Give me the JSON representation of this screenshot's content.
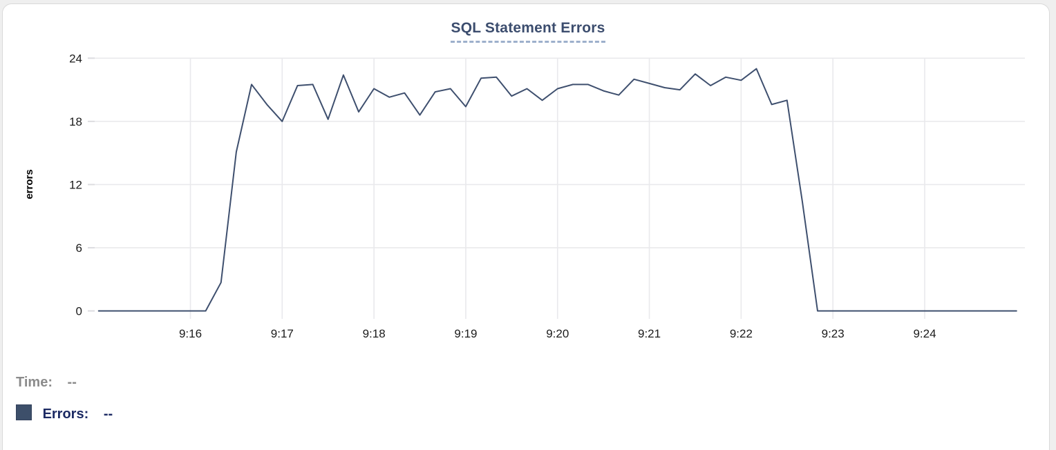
{
  "header": {
    "title": "SQL Statement Errors"
  },
  "chart_data": {
    "type": "line",
    "title": "SQL Statement Errors",
    "xlabel": "",
    "ylabel": "errors",
    "ylim": [
      0,
      24
    ],
    "y_ticks": [
      0,
      6,
      12,
      18,
      24
    ],
    "x_ticks": [
      "9:16",
      "9:17",
      "9:18",
      "9:19",
      "9:20",
      "9:21",
      "9:22",
      "9:23",
      "9:24"
    ],
    "x_range": [
      "9:15:00",
      "9:25:00"
    ],
    "grid": true,
    "legend_position": "bottom-left",
    "series": [
      {
        "name": "Errors",
        "color": "#3e4f6e",
        "points": [
          [
            "9:15:00",
            0
          ],
          [
            "9:15:10",
            0
          ],
          [
            "9:15:20",
            0
          ],
          [
            "9:15:30",
            0
          ],
          [
            "9:15:40",
            0
          ],
          [
            "9:15:50",
            0
          ],
          [
            "9:16:00",
            0
          ],
          [
            "9:16:10",
            0
          ],
          [
            "9:16:20",
            2.7
          ],
          [
            "9:16:30",
            15.1
          ],
          [
            "9:16:40",
            21.5
          ],
          [
            "9:16:50",
            19.6
          ],
          [
            "9:17:00",
            18
          ],
          [
            "9:17:10",
            21.4
          ],
          [
            "9:17:20",
            21.5
          ],
          [
            "9:17:30",
            18.2
          ],
          [
            "9:17:40",
            22.4
          ],
          [
            "9:17:50",
            18.9
          ],
          [
            "9:18:00",
            21.1
          ],
          [
            "9:18:10",
            20.3
          ],
          [
            "9:18:20",
            20.7
          ],
          [
            "9:18:30",
            18.6
          ],
          [
            "9:18:40",
            20.8
          ],
          [
            "9:18:50",
            21.1
          ],
          [
            "9:19:00",
            19.4
          ],
          [
            "9:19:10",
            22.1
          ],
          [
            "9:19:20",
            22.2
          ],
          [
            "9:19:30",
            20.4
          ],
          [
            "9:19:40",
            21.1
          ],
          [
            "9:19:50",
            20
          ],
          [
            "9:20:00",
            21.1
          ],
          [
            "9:20:10",
            21.5
          ],
          [
            "9:20:20",
            21.5
          ],
          [
            "9:20:30",
            20.9
          ],
          [
            "9:20:40",
            20.5
          ],
          [
            "9:20:50",
            22
          ],
          [
            "9:21:00",
            21.6
          ],
          [
            "9:21:10",
            21.2
          ],
          [
            "9:21:20",
            21
          ],
          [
            "9:21:30",
            22.5
          ],
          [
            "9:21:40",
            21.4
          ],
          [
            "9:21:50",
            22.2
          ],
          [
            "9:22:00",
            21.9
          ],
          [
            "9:22:10",
            23
          ],
          [
            "9:22:20",
            19.6
          ],
          [
            "9:22:30",
            20
          ],
          [
            "9:22:40",
            10.4
          ],
          [
            "9:22:50",
            0
          ],
          [
            "9:23:00",
            0
          ],
          [
            "9:23:10",
            0
          ],
          [
            "9:23:20",
            0
          ],
          [
            "9:23:30",
            0
          ],
          [
            "9:23:40",
            0
          ],
          [
            "9:23:50",
            0
          ],
          [
            "9:24:00",
            0
          ],
          [
            "9:24:10",
            0
          ],
          [
            "9:24:20",
            0
          ],
          [
            "9:24:30",
            0
          ],
          [
            "9:24:40",
            0
          ],
          [
            "9:24:50",
            0
          ],
          [
            "9:25:00",
            0
          ]
        ]
      }
    ]
  },
  "legend": {
    "time_label": "Time:",
    "time_value": "--",
    "errors_label": "Errors:",
    "errors_value": "--",
    "errors_swatch_color": "#3d4f6a"
  },
  "colors": {
    "line": "#3e4f6e",
    "title": "#3c4d6e",
    "title_underline": "#9db0cc",
    "grid": "#e9e9ec",
    "tick_text": "#1b1b1b",
    "legend_time_text": "#8b8b8b",
    "legend_errors_text": "#1c2a63",
    "card_border": "#d9d9d9",
    "card_background": "#ffffff"
  }
}
